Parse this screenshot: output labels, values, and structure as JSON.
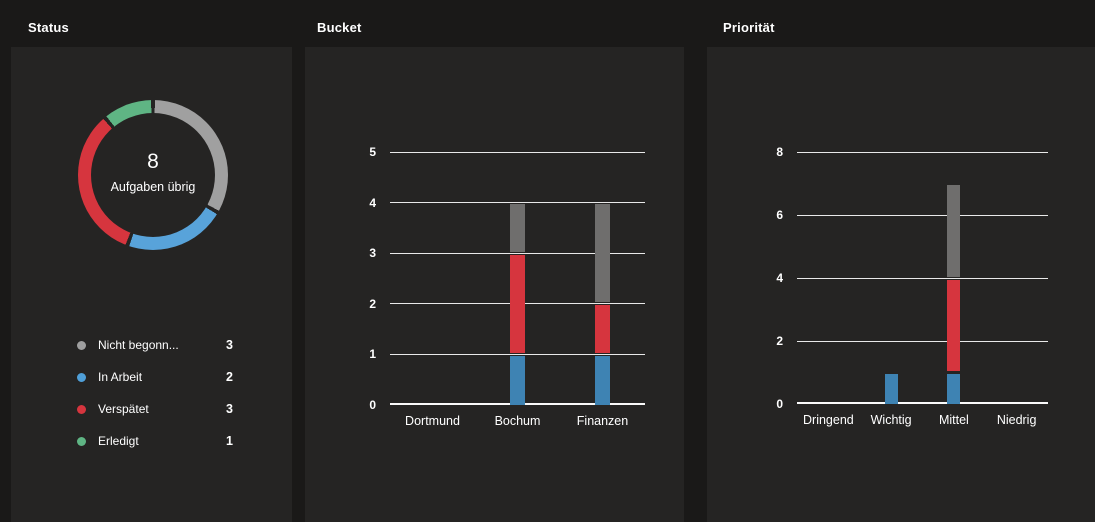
{
  "colors": {
    "page_bg": "#1a1918",
    "panel_bg": "#252423",
    "grid_line": "#fafafa",
    "text": "#ffffff",
    "status_gray": "#9f9f9f",
    "status_blue": "#4f9fd8",
    "status_red": "#d6353e",
    "status_green": "#5fb584",
    "bar_blue": "#3e83b3",
    "bar_red": "#d6353e",
    "bar_gray": "#6f6e6d"
  },
  "panels": {
    "status": {
      "title": "Status",
      "donut": {
        "center_value": "8",
        "center_label": "Aufgaben übrig"
      },
      "legend": [
        {
          "label": "Nicht begonn...",
          "value": "3",
          "color": "#9f9f9f"
        },
        {
          "label": "In Arbeit",
          "value": "2",
          "color": "#4f9fd8"
        },
        {
          "label": "Verspätet",
          "value": "3",
          "color": "#d6353e"
        },
        {
          "label": "Erledigt",
          "value": "1",
          "color": "#5fb584"
        }
      ]
    },
    "bucket": {
      "title": "Bucket"
    },
    "prioritaet": {
      "title": "Priorität"
    }
  },
  "chart_data": [
    {
      "type": "pie",
      "subtype": "donut",
      "title": "Status",
      "center_value": 8,
      "center_label": "Aufgaben übrig",
      "slices": [
        {
          "label": "Nicht begonnen",
          "value": 3,
          "color": "#a0a0a0"
        },
        {
          "label": "In Arbeit",
          "value": 2,
          "color": "#58a3da"
        },
        {
          "label": "Verspätet",
          "value": 3,
          "color": "#d6353e"
        },
        {
          "label": "Erledigt",
          "value": 1,
          "color": "#5fb584"
        }
      ]
    },
    {
      "type": "bar",
      "subtype": "stacked",
      "title": "Bucket",
      "categories": [
        "Dortmund",
        "Bochum",
        "Finanzen"
      ],
      "series": [
        {
          "name": "In Arbeit",
          "color": "#3e83b3",
          "values": [
            0,
            1,
            1
          ]
        },
        {
          "name": "Verspätet",
          "color": "#d6353e",
          "values": [
            0,
            2,
            1
          ]
        },
        {
          "name": "Nicht begonnen",
          "color": "#6f6e6d",
          "values": [
            0,
            1,
            2
          ]
        }
      ],
      "totals": [
        0,
        4,
        4
      ],
      "xlabel": "",
      "ylabel": "",
      "ylim": [
        0,
        5
      ],
      "ystep": 1,
      "grid": true,
      "legend_position": "none"
    },
    {
      "type": "bar",
      "subtype": "stacked",
      "title": "Priorität",
      "categories": [
        "Dringend",
        "Wichtig",
        "Mittel",
        "Niedrig"
      ],
      "series": [
        {
          "name": "In Arbeit",
          "color": "#3e83b3",
          "values": [
            0,
            1,
            1,
            0
          ]
        },
        {
          "name": "Verspätet",
          "color": "#d6353e",
          "values": [
            0,
            0,
            3,
            0
          ]
        },
        {
          "name": "Nicht begonnen",
          "color": "#6f6e6d",
          "values": [
            0,
            0,
            3,
            0
          ]
        }
      ],
      "totals": [
        0,
        1,
        7,
        0
      ],
      "xlabel": "",
      "ylabel": "",
      "ylim": [
        0,
        8
      ],
      "ystep": 2,
      "grid": true,
      "legend_position": "none"
    }
  ]
}
